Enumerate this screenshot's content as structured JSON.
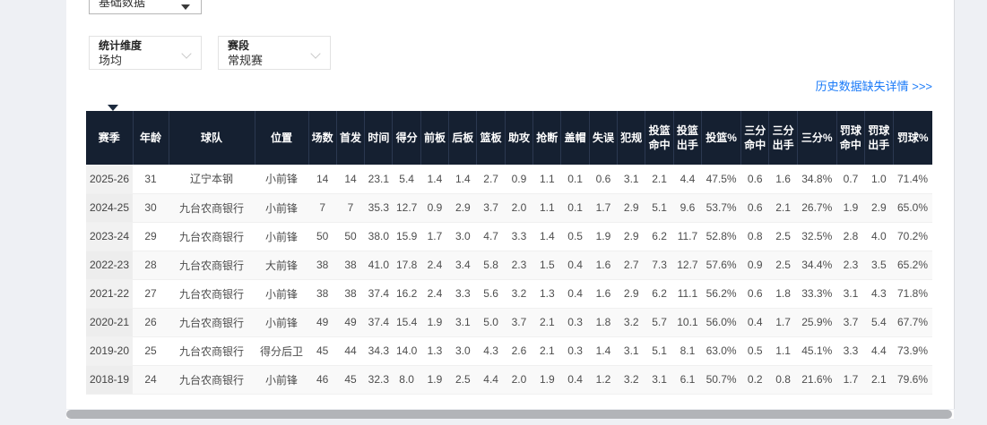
{
  "colors": {
    "header_bg": "#152031",
    "link_blue": "#1a7af8",
    "page_bg": "#eef0f4",
    "alt_row_bg": "#f9f9f9",
    "season_col_bg": "#f1f1f1",
    "scroll_thumb": "#b2b4b8"
  },
  "filters": {
    "data_type_value": "基础数据",
    "dimension_label": "统计维度",
    "dimension_value": "场均",
    "stage_label": "赛段",
    "stage_value": "常规赛"
  },
  "history_link": "历史数据缺失详情 >>>",
  "table": {
    "columns": [
      "赛季",
      "年龄",
      "球队",
      "位置",
      "场数",
      "首发",
      "时间",
      "得分",
      "前板",
      "后板",
      "篮板",
      "助攻",
      "抢断",
      "盖帽",
      "失误",
      "犯规",
      "投篮命中",
      "投篮出手",
      "投篮%",
      "三分命中",
      "三分出手",
      "三分%",
      "罚球命中",
      "罚球出手",
      "罚球%"
    ],
    "rows": [
      [
        "2025-26",
        "31",
        "辽宁本钢",
        "小前锋",
        "14",
        "14",
        "23.1",
        "5.4",
        "1.4",
        "1.4",
        "2.7",
        "0.9",
        "1.1",
        "0.1",
        "0.6",
        "3.1",
        "2.1",
        "4.4",
        "47.5%",
        "0.6",
        "1.6",
        "34.8%",
        "0.7",
        "1.0",
        "71.4%"
      ],
      [
        "2024-25",
        "30",
        "九台农商银行",
        "小前锋",
        "7",
        "7",
        "35.3",
        "12.7",
        "0.9",
        "2.9",
        "3.7",
        "2.0",
        "1.1",
        "0.1",
        "1.7",
        "2.9",
        "5.1",
        "9.6",
        "53.7%",
        "0.6",
        "2.1",
        "26.7%",
        "1.9",
        "2.9",
        "65.0%"
      ],
      [
        "2023-24",
        "29",
        "九台农商银行",
        "小前锋",
        "50",
        "50",
        "38.0",
        "15.9",
        "1.7",
        "3.0",
        "4.7",
        "3.3",
        "1.4",
        "0.5",
        "1.9",
        "2.9",
        "6.2",
        "11.7",
        "52.8%",
        "0.8",
        "2.5",
        "32.5%",
        "2.8",
        "4.0",
        "70.2%"
      ],
      [
        "2022-23",
        "28",
        "九台农商银行",
        "大前锋",
        "38",
        "38",
        "41.0",
        "17.8",
        "2.4",
        "3.4",
        "5.8",
        "2.3",
        "1.5",
        "0.4",
        "1.6",
        "2.7",
        "7.3",
        "12.7",
        "57.6%",
        "0.9",
        "2.5",
        "34.4%",
        "2.3",
        "3.5",
        "65.2%"
      ],
      [
        "2021-22",
        "27",
        "九台农商银行",
        "小前锋",
        "38",
        "38",
        "37.4",
        "16.2",
        "2.4",
        "3.3",
        "5.6",
        "3.2",
        "1.3",
        "0.4",
        "1.6",
        "2.9",
        "6.2",
        "11.1",
        "56.2%",
        "0.6",
        "1.8",
        "33.3%",
        "3.1",
        "4.3",
        "71.8%"
      ],
      [
        "2020-21",
        "26",
        "九台农商银行",
        "小前锋",
        "49",
        "49",
        "37.4",
        "15.4",
        "1.9",
        "3.1",
        "5.0",
        "3.7",
        "2.1",
        "0.3",
        "1.8",
        "3.2",
        "5.7",
        "10.1",
        "56.0%",
        "0.4",
        "1.7",
        "25.9%",
        "3.7",
        "5.4",
        "67.7%"
      ],
      [
        "2019-20",
        "25",
        "九台农商银行",
        "得分后卫",
        "45",
        "44",
        "34.3",
        "14.0",
        "1.3",
        "3.0",
        "4.3",
        "2.6",
        "2.1",
        "0.3",
        "1.4",
        "3.1",
        "5.1",
        "8.1",
        "63.0%",
        "0.5",
        "1.1",
        "45.1%",
        "3.3",
        "4.4",
        "73.9%"
      ],
      [
        "2018-19",
        "24",
        "九台农商银行",
        "小前锋",
        "46",
        "45",
        "32.3",
        "8.0",
        "1.9",
        "2.5",
        "4.4",
        "2.0",
        "1.9",
        "0.4",
        "1.2",
        "3.2",
        "3.1",
        "6.1",
        "50.7%",
        "0.2",
        "0.8",
        "21.6%",
        "1.7",
        "2.1",
        "79.6%"
      ]
    ]
  }
}
